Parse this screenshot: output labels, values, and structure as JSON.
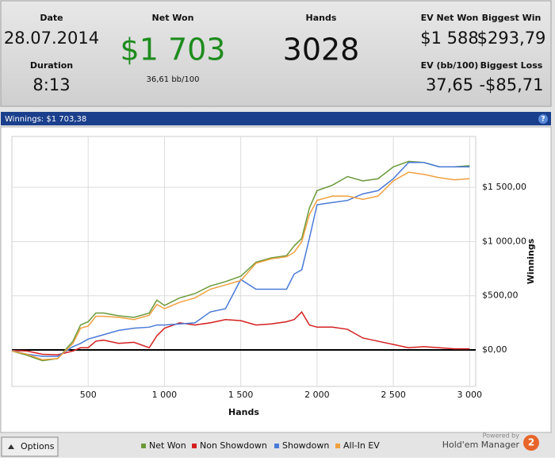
{
  "stats": {
    "date_label": "Date",
    "date": "28.07.2014",
    "duration_label": "Duration",
    "duration": "8:13",
    "net_won_label": "Net Won",
    "net_won": "$1 703",
    "bb_per_100": "36,61 bb/100",
    "hands_label": "Hands",
    "hands": "3028",
    "ev_net_won_label": "EV Net Won",
    "ev_net_won": "$1 588",
    "biggest_win_label": "Biggest Win",
    "biggest_win": "$293,79",
    "ev_bb_label": "EV (bb/100)",
    "ev_bb": "37,65",
    "biggest_loss_label": "Biggest Loss",
    "biggest_loss": "-$85,71"
  },
  "help": "?",
  "options": "Options",
  "powered_by": "Powered by",
  "brand": "Hold'em Manager",
  "brand_badge": "2",
  "chart_data": {
    "type": "line",
    "title": "Winnings: $1 703,38",
    "xlabel": "Hands",
    "ylabel": "Winnings",
    "grid": true,
    "x": [
      0,
      100,
      200,
      300,
      400,
      450,
      500,
      550,
      600,
      700,
      800,
      900,
      950,
      1000,
      1100,
      1200,
      1300,
      1400,
      1500,
      1600,
      1700,
      1800,
      1850,
      1900,
      1950,
      2000,
      2100,
      2200,
      2300,
      2400,
      2500,
      2600,
      2700,
      2800,
      2900,
      3000
    ],
    "series": [
      {
        "name": "Net Won",
        "color": "#6a9a3a",
        "values": [
          -10,
          -50,
          -100,
          -80,
          80,
          230,
          260,
          340,
          340,
          315,
          300,
          340,
          460,
          410,
          480,
          520,
          590,
          630,
          680,
          810,
          850,
          870,
          960,
          1030,
          1310,
          1470,
          1520,
          1600,
          1560,
          1580,
          1690,
          1740,
          1730,
          1690,
          1690,
          1700
        ]
      },
      {
        "name": "Non Showdown",
        "color": "#d42020",
        "values": [
          -5,
          -10,
          -40,
          -45,
          -10,
          20,
          20,
          80,
          90,
          60,
          70,
          20,
          130,
          200,
          250,
          230,
          250,
          280,
          270,
          230,
          240,
          260,
          280,
          350,
          230,
          210,
          210,
          190,
          110,
          80,
          50,
          20,
          30,
          20,
          10,
          10
        ]
      },
      {
        "name": "Showdown",
        "color": "#4a7ad8",
        "values": [
          -5,
          -40,
          -60,
          -60,
          30,
          60,
          100,
          120,
          140,
          180,
          200,
          210,
          230,
          230,
          240,
          250,
          350,
          380,
          650,
          560,
          560,
          560,
          700,
          740,
          1030,
          1340,
          1360,
          1380,
          1440,
          1470,
          1580,
          1730,
          1730,
          1690,
          1690,
          1690
        ]
      },
      {
        "name": "All-In EV",
        "color": "#f0a040",
        "values": [
          -10,
          -40,
          -90,
          -80,
          60,
          200,
          220,
          310,
          310,
          300,
          280,
          320,
          420,
          380,
          440,
          480,
          560,
          600,
          640,
          800,
          840,
          860,
          900,
          1000,
          1250,
          1380,
          1420,
          1420,
          1390,
          1420,
          1560,
          1640,
          1620,
          1590,
          1570,
          1580
        ]
      }
    ],
    "xlim": [
      0,
      3040
    ],
    "ylim": [
      -337,
      1970
    ],
    "xticks": [
      {
        "value": 500,
        "label": "500"
      },
      {
        "value": 1000,
        "label": "1 000"
      },
      {
        "value": 1500,
        "label": "1 500"
      },
      {
        "value": 2000,
        "label": "2 000"
      },
      {
        "value": 2500,
        "label": "2 500"
      },
      {
        "value": 3000,
        "label": "3 000"
      }
    ],
    "yticks": [
      {
        "value": 0,
        "label": "$0,00"
      },
      {
        "value": 500,
        "label": "$500,00"
      },
      {
        "value": 1000,
        "label": "$1 000,00"
      },
      {
        "value": 1500,
        "label": "$1 500,00"
      }
    ]
  }
}
